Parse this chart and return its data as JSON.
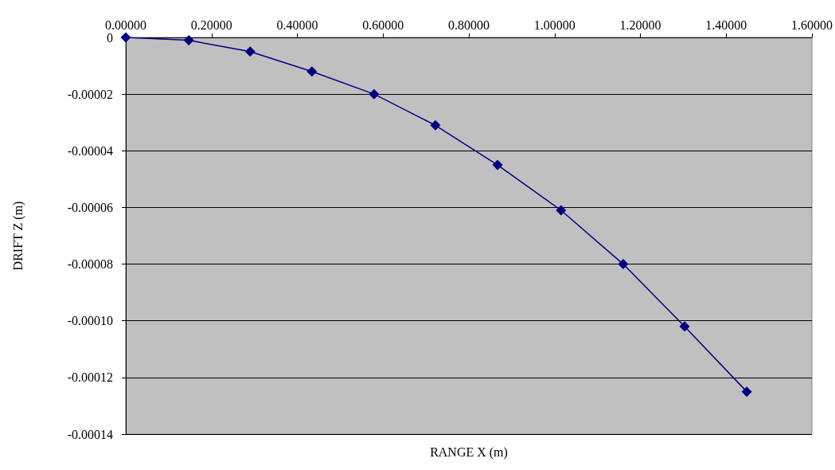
{
  "chart_data": {
    "type": "line",
    "xlabel": "RANGE X (m)",
    "ylabel": "DRIFT Z (m)",
    "x": [
      0,
      0.147,
      0.29,
      0.434,
      0.579,
      0.722,
      0.867,
      1.015,
      1.16,
      1.303,
      1.448
    ],
    "series": [
      {
        "color": "#000080",
        "values": [
          0,
          -1e-06,
          -5e-06,
          -1.2e-05,
          -2e-05,
          -3.1e-05,
          -4.5e-05,
          -6.1e-05,
          -8e-05,
          -0.000102,
          -0.000125
        ]
      }
    ],
    "xlim": [
      0,
      1.6
    ],
    "xticks": [
      {
        "value": 0,
        "label": "0.00000"
      },
      {
        "value": 0.2,
        "label": "0.20000"
      },
      {
        "value": 0.4,
        "label": "0.40000"
      },
      {
        "value": 0.6,
        "label": "0.60000"
      },
      {
        "value": 0.8,
        "label": "0.80000"
      },
      {
        "value": 1,
        "label": "1.00000"
      },
      {
        "value": 1.2,
        "label": "1.20000"
      },
      {
        "value": 1.4,
        "label": "1.40000"
      },
      {
        "value": 1.6,
        "label": "1.60000"
      }
    ],
    "ylim": [
      -0.00014,
      0
    ],
    "yticks": [
      0,
      {
        "value": -2e-05,
        "label": "-0.00002"
      },
      {
        "value": -4e-05,
        "label": "-0.00004"
      },
      {
        "value": -6e-05,
        "label": "-0.00006"
      },
      {
        "value": -8e-05,
        "label": "-0.00008"
      },
      {
        "value": -0.0001,
        "label": "-0.00010"
      },
      {
        "value": -0.00012,
        "label": "-0.00012"
      },
      {
        "value": -0.00014,
        "label": "-0.00014"
      }
    ],
    "grid": "y",
    "marker": "diamond",
    "line_style": "solid"
  }
}
